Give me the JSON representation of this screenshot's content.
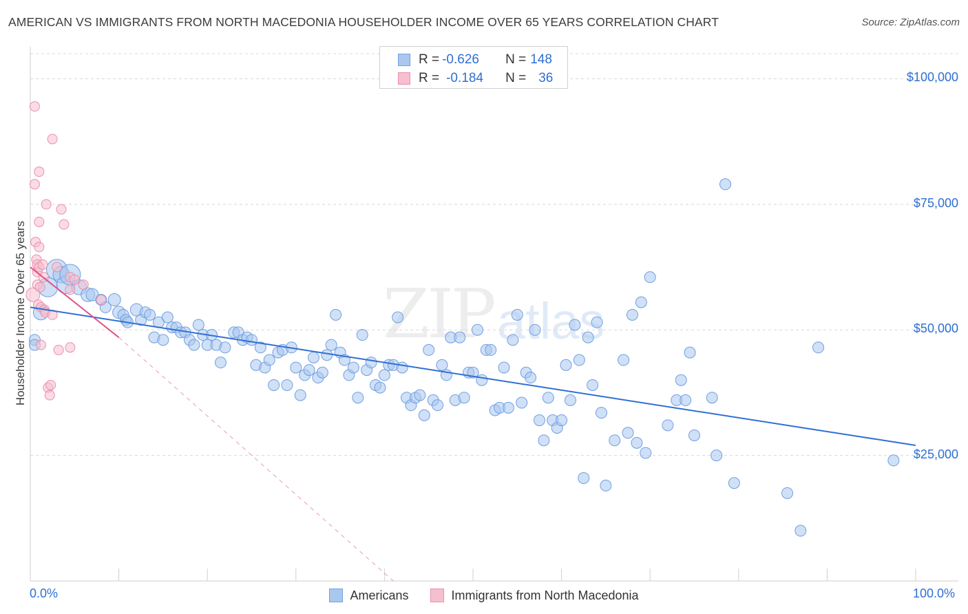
{
  "title": "AMERICAN VS IMMIGRANTS FROM NORTH MACEDONIA HOUSEHOLDER INCOME OVER 65 YEARS CORRELATION CHART",
  "source": "Source: ZipAtlas.com",
  "watermark": {
    "zip": "ZIP",
    "atlas": "atlas"
  },
  "colors": {
    "americans_fill": "#a9c7ef",
    "americans_stroke": "#6f9fe0",
    "americans_line": "#2e6fd3",
    "immigrants_fill": "#f6bfd0",
    "immigrants_stroke": "#ea8fad",
    "immigrants_line": "#e0508a",
    "axis_text": "#2e6fd3",
    "grid": "#d8d8d8"
  },
  "legend_top": {
    "rows": [
      {
        "r_label": "R = ",
        "r_value": "-0.626",
        "n_label": "N = ",
        "n_value": "148"
      },
      {
        "r_label": "R = ",
        "r_value": "-0.184",
        "n_label": "N = ",
        "n_value": "36"
      }
    ]
  },
  "legend_bottom": [
    "Americans",
    "Immigrants from North Macedonia"
  ],
  "chart_data": {
    "type": "scatter",
    "xlabel": "",
    "ylabel": "Householder Income Over 65 years",
    "x_tick_labels": [
      "0.0%",
      "100.0%"
    ],
    "xlim": [
      0,
      100
    ],
    "ylim": [
      0,
      105000
    ],
    "y_ticks": [
      {
        "value": 25000,
        "label": "$25,000"
      },
      {
        "value": 50000,
        "label": "$50,000"
      },
      {
        "value": 75000,
        "label": "$75,000"
      },
      {
        "value": 100000,
        "label": "$100,000"
      }
    ],
    "grid": "horizontal dashed",
    "series": [
      {
        "name": "Americans",
        "trend": {
          "x": [
            0,
            100
          ],
          "y": [
            54500,
            27000
          ],
          "style": "solid"
        },
        "points": [
          [
            0.5,
            48000,
            8
          ],
          [
            0.5,
            47000,
            8
          ],
          [
            1.2,
            53500,
            11
          ],
          [
            2.0,
            58500,
            14
          ],
          [
            3.0,
            62000,
            15
          ],
          [
            3.5,
            61000,
            12
          ],
          [
            4.0,
            59000,
            13
          ],
          [
            4.5,
            61000,
            15
          ],
          [
            5.5,
            58500,
            11
          ],
          [
            6.5,
            57000,
            10
          ],
          [
            7.0,
            57000,
            9
          ],
          [
            8.0,
            56000,
            8
          ],
          [
            8.5,
            54500,
            8
          ],
          [
            9.5,
            56000,
            9
          ],
          [
            10.0,
            53500,
            9
          ],
          [
            10.5,
            53000,
            8
          ],
          [
            10.8,
            52000,
            8
          ],
          [
            11.0,
            51500,
            8
          ],
          [
            12.0,
            54000,
            9
          ],
          [
            12.5,
            52000,
            8
          ],
          [
            13.0,
            53500,
            8
          ],
          [
            13.5,
            53000,
            8
          ],
          [
            14.0,
            48500,
            8
          ],
          [
            14.5,
            51500,
            8
          ],
          [
            15.0,
            48000,
            8
          ],
          [
            15.5,
            52500,
            8
          ],
          [
            16.0,
            50500,
            8
          ],
          [
            16.5,
            50500,
            8
          ],
          [
            17.0,
            49500,
            8
          ],
          [
            17.5,
            49500,
            8
          ],
          [
            18.0,
            48000,
            8
          ],
          [
            18.5,
            47000,
            8
          ],
          [
            19.0,
            51000,
            8
          ],
          [
            19.5,
            49000,
            8
          ],
          [
            20.0,
            47000,
            8
          ],
          [
            20.5,
            49000,
            8
          ],
          [
            21.0,
            47000,
            8
          ],
          [
            21.5,
            43500,
            8
          ],
          [
            22.0,
            46500,
            8
          ],
          [
            23.0,
            49500,
            8
          ],
          [
            23.5,
            49500,
            8
          ],
          [
            24.0,
            48000,
            8
          ],
          [
            24.5,
            48500,
            8
          ],
          [
            25.0,
            48000,
            8
          ],
          [
            25.5,
            43000,
            8
          ],
          [
            26.0,
            46500,
            8
          ],
          [
            26.5,
            42500,
            8
          ],
          [
            27.0,
            44000,
            8
          ],
          [
            27.5,
            39000,
            8
          ],
          [
            28.0,
            45500,
            8
          ],
          [
            28.5,
            46000,
            8
          ],
          [
            29.0,
            39000,
            8
          ],
          [
            29.5,
            46500,
            8
          ],
          [
            30.0,
            42500,
            8
          ],
          [
            30.5,
            37000,
            8
          ],
          [
            31.0,
            41000,
            8
          ],
          [
            31.5,
            42000,
            8
          ],
          [
            32.0,
            44500,
            8
          ],
          [
            32.5,
            40500,
            8
          ],
          [
            33.0,
            41500,
            8
          ],
          [
            33.5,
            45000,
            8
          ],
          [
            34.0,
            47000,
            8
          ],
          [
            34.5,
            53000,
            8
          ],
          [
            35.0,
            45500,
            8
          ],
          [
            35.5,
            44000,
            8
          ],
          [
            36.0,
            41000,
            8
          ],
          [
            36.5,
            42500,
            8
          ],
          [
            37.0,
            36500,
            8
          ],
          [
            37.5,
            49000,
            8
          ],
          [
            38.0,
            42000,
            8
          ],
          [
            38.5,
            43500,
            8
          ],
          [
            39.0,
            39000,
            8
          ],
          [
            39.5,
            38500,
            8
          ],
          [
            40.0,
            41000,
            8
          ],
          [
            40.5,
            43000,
            8
          ],
          [
            41.0,
            43000,
            8
          ],
          [
            41.5,
            52500,
            8
          ],
          [
            42.0,
            42500,
            8
          ],
          [
            42.5,
            36500,
            8
          ],
          [
            43.0,
            35000,
            8
          ],
          [
            43.5,
            36500,
            8
          ],
          [
            44.0,
            37000,
            8
          ],
          [
            44.5,
            33000,
            8
          ],
          [
            45.0,
            46000,
            8
          ],
          [
            45.5,
            36000,
            8
          ],
          [
            46.0,
            35000,
            8
          ],
          [
            46.5,
            43000,
            8
          ],
          [
            47.0,
            41000,
            8
          ],
          [
            47.5,
            48500,
            8
          ],
          [
            48.0,
            36000,
            8
          ],
          [
            48.5,
            48500,
            8
          ],
          [
            49.0,
            36500,
            8
          ],
          [
            49.5,
            41500,
            8
          ],
          [
            50.0,
            41500,
            8
          ],
          [
            50.5,
            50000,
            8
          ],
          [
            51.0,
            40000,
            8
          ],
          [
            51.5,
            46000,
            8
          ],
          [
            52.0,
            46000,
            8
          ],
          [
            52.5,
            34000,
            8
          ],
          [
            53.0,
            34500,
            8
          ],
          [
            53.5,
            42500,
            8
          ],
          [
            54.0,
            34500,
            8
          ],
          [
            54.5,
            48000,
            8
          ],
          [
            55.0,
            53000,
            8
          ],
          [
            55.5,
            35500,
            8
          ],
          [
            56.0,
            41500,
            8
          ],
          [
            56.5,
            40500,
            8
          ],
          [
            57.0,
            50000,
            8
          ],
          [
            57.5,
            32000,
            8
          ],
          [
            58.0,
            28000,
            8
          ],
          [
            58.5,
            36500,
            8
          ],
          [
            59.0,
            32000,
            8
          ],
          [
            59.5,
            30500,
            8
          ],
          [
            60.0,
            32000,
            8
          ],
          [
            60.5,
            43000,
            8
          ],
          [
            61.0,
            36000,
            8
          ],
          [
            61.5,
            51000,
            8
          ],
          [
            62.0,
            44000,
            8
          ],
          [
            62.5,
            20500,
            8
          ],
          [
            63.0,
            48500,
            8
          ],
          [
            63.5,
            39000,
            8
          ],
          [
            64.0,
            51500,
            8
          ],
          [
            64.5,
            33500,
            8
          ],
          [
            65.0,
            19000,
            8
          ],
          [
            66.0,
            28000,
            8
          ],
          [
            67.0,
            44000,
            8
          ],
          [
            67.5,
            29500,
            8
          ],
          [
            68.0,
            53000,
            8
          ],
          [
            68.5,
            27500,
            8
          ],
          [
            69.0,
            55500,
            8
          ],
          [
            69.5,
            25500,
            8
          ],
          [
            70.0,
            60500,
            8
          ],
          [
            72.0,
            31000,
            8
          ],
          [
            73.0,
            36000,
            8
          ],
          [
            73.5,
            40000,
            8
          ],
          [
            74.0,
            36000,
            8
          ],
          [
            74.5,
            45500,
            8
          ],
          [
            75.0,
            29000,
            8
          ],
          [
            77.0,
            36500,
            8
          ],
          [
            77.5,
            25000,
            8
          ],
          [
            78.5,
            79000,
            8
          ],
          [
            79.5,
            19500,
            8
          ],
          [
            85.5,
            17500,
            8
          ],
          [
            87.0,
            10000,
            8
          ],
          [
            89.0,
            46500,
            8
          ],
          [
            97.5,
            24000,
            8
          ]
        ]
      },
      {
        "name": "Immigrants from North Macedonia",
        "trend": {
          "x": [
            0,
            10.0
          ],
          "y": [
            62500,
            48500
          ],
          "style": "solid",
          "extension": {
            "x": [
              10.0,
              41.0
            ],
            "y": [
              48500,
              0
            ],
            "style": "dashed"
          }
        },
        "points": [
          [
            0.3,
            57000,
            10
          ],
          [
            0.5,
            94500,
            7
          ],
          [
            0.5,
            79000,
            7
          ],
          [
            0.6,
            67500,
            7
          ],
          [
            0.7,
            64000,
            7
          ],
          [
            0.8,
            63000,
            7
          ],
          [
            0.8,
            61500,
            7
          ],
          [
            0.8,
            59000,
            7
          ],
          [
            0.9,
            55000,
            7
          ],
          [
            1.0,
            81500,
            7
          ],
          [
            1.0,
            71500,
            7
          ],
          [
            1.0,
            66500,
            7
          ],
          [
            1.0,
            62500,
            7
          ],
          [
            1.1,
            58500,
            7
          ],
          [
            1.2,
            54500,
            7
          ],
          [
            1.2,
            47000,
            7
          ],
          [
            1.4,
            63000,
            7
          ],
          [
            1.5,
            60500,
            7
          ],
          [
            1.6,
            54000,
            7
          ],
          [
            1.7,
            53500,
            7
          ],
          [
            1.8,
            75000,
            7
          ],
          [
            2.0,
            38500,
            7
          ],
          [
            2.2,
            37000,
            7
          ],
          [
            2.3,
            39000,
            7
          ],
          [
            2.5,
            88000,
            7
          ],
          [
            2.5,
            53000,
            7
          ],
          [
            3.0,
            62500,
            7
          ],
          [
            3.2,
            46000,
            7
          ],
          [
            3.5,
            74000,
            7
          ],
          [
            3.8,
            71000,
            7
          ],
          [
            4.5,
            60500,
            7
          ],
          [
            4.5,
            58000,
            7
          ],
          [
            4.5,
            46500,
            7
          ],
          [
            5.0,
            60000,
            7
          ],
          [
            6.0,
            59000,
            7
          ],
          [
            8.0,
            56000,
            7
          ]
        ]
      }
    ]
  }
}
